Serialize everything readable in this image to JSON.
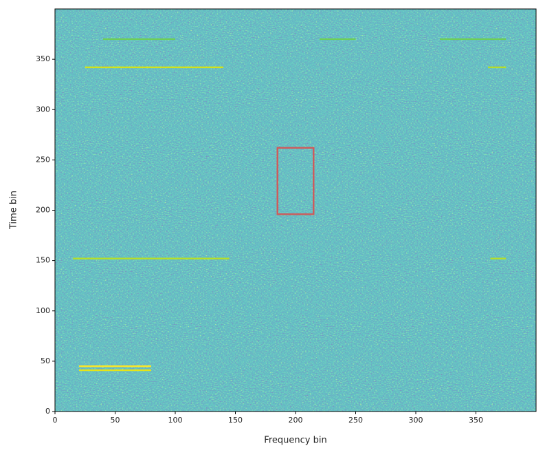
{
  "chart_data": {
    "type": "heatmap",
    "x_label": "Frequency bin",
    "y_label": "Time bin",
    "xlim": [
      0,
      400
    ],
    "ylim": [
      0,
      400
    ],
    "xticks": [
      0,
      50,
      100,
      150,
      200,
      250,
      300,
      350
    ],
    "yticks": [
      0,
      50,
      100,
      150,
      200,
      250,
      300,
      350
    ],
    "streaks": [
      {
        "x": [
          20,
          80
        ],
        "y": 45,
        "color": "#fde725"
      },
      {
        "x": [
          20,
          80
        ],
        "y": 41,
        "color": "#e5e419"
      },
      {
        "x": [
          25,
          140
        ],
        "y": 342,
        "color": "#d2e21b"
      },
      {
        "x": [
          15,
          145
        ],
        "y": 152,
        "color": "#b5de2b"
      },
      {
        "x": [
          40,
          100
        ],
        "y": 370,
        "color": "#6ece58"
      },
      {
        "x": [
          220,
          250
        ],
        "y": 370,
        "color": "#6ece58"
      },
      {
        "x": [
          320,
          375
        ],
        "y": 370,
        "color": "#6ece58"
      },
      {
        "x": [
          360,
          375
        ],
        "y": 342,
        "color": "#b5de2b"
      },
      {
        "x": [
          362,
          375
        ],
        "y": 152,
        "color": "#b5de2b"
      }
    ],
    "box": {
      "x": [
        185,
        215
      ],
      "y": [
        196,
        262
      ],
      "color": "#cd5c5c"
    }
  }
}
